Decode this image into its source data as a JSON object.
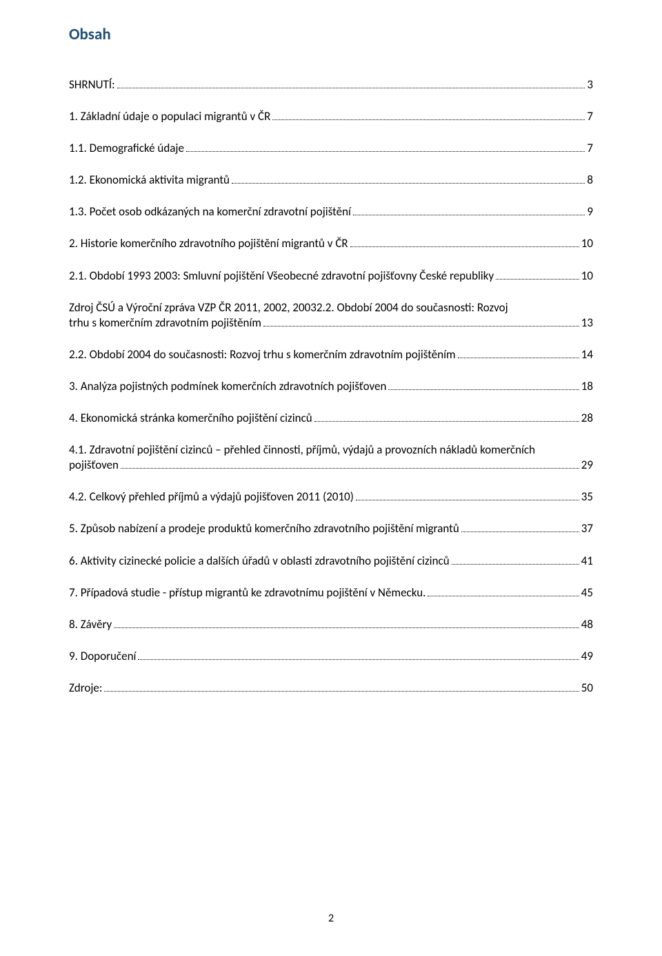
{
  "title": "Obsah",
  "entries": [
    {
      "text": "SHRNUTÍ:",
      "page": "3",
      "wrapped": false
    },
    {
      "text": "1. Základní údaje o populaci migrantů v ČR",
      "page": "7",
      "wrapped": false
    },
    {
      "text": "1.1. Demografické údaje",
      "page": "7",
      "wrapped": false
    },
    {
      "text": "1.2. Ekonomická aktivita migrantů",
      "page": "8",
      "wrapped": false
    },
    {
      "text": "1.3. Počet osob odkázaných na komerční zdravotní pojištění",
      "page": "9",
      "wrapped": false
    },
    {
      "text": "2. Historie komerčního zdravotního pojištění migrantů v ČR",
      "page": "10",
      "wrapped": false
    },
    {
      "text": "2.1. Období 1993 2003: Smluvní pojištění Všeobecné zdravotní pojišťovny České republiky",
      "page": "10",
      "wrapped": false
    },
    {
      "text": "Zdroj ČSÚ a Výroční zpráva VZP ČR 2011, 2002, 20032.2. Období 2004 do současnosti: Rozvoj",
      "text2": "trhu s komerčním zdravotním pojištěním",
      "page": "13",
      "wrapped": true
    },
    {
      "text": "2.2. Období 2004 do současnosti: Rozvoj trhu s komerčním zdravotním pojištěním",
      "page": "14",
      "wrapped": false
    },
    {
      "text": "3. Analýza pojistných podmínek komerčních zdravotních pojišťoven",
      "page": "18",
      "wrapped": false
    },
    {
      "text": "4. Ekonomická stránka komerčního pojištění cizinců",
      "page": "28",
      "wrapped": false
    },
    {
      "text": "4.1. Zdravotní pojištění cizinců – přehled činnosti, příjmů, výdajů a provozních nákladů komerčních",
      "text2": "pojišťoven",
      "page": "29",
      "wrapped": true
    },
    {
      "text": "4.2. Celkový přehled příjmů a výdajů pojišťoven 2011 (2010)",
      "page": "35",
      "wrapped": false
    },
    {
      "text": "5. Způsob nabízení a prodeje produktů komerčního zdravotního pojištění migrantů",
      "page": "37",
      "wrapped": false
    },
    {
      "text": "6. Aktivity cizinecké policie a dalších úřadů v oblasti zdravotního pojištění cizinců",
      "page": "41",
      "wrapped": false
    },
    {
      "text": "7. Případová studie - přístup migrantů ke zdravotnímu pojištění v Německu.",
      "page": "45",
      "wrapped": false
    },
    {
      "text": "8. Závěry",
      "page": "48",
      "wrapped": false
    },
    {
      "text": "9. Doporučení",
      "page": "49",
      "wrapped": false
    },
    {
      "text": "Zdroje:",
      "page": "50",
      "wrapped": false
    }
  ],
  "footerPage": "2",
  "colors": {
    "titleColor": "#1f4e79",
    "textColor": "#000000",
    "background": "#ffffff"
  },
  "fontSizes": {
    "title": 23,
    "entry": 17,
    "footer": 16
  }
}
